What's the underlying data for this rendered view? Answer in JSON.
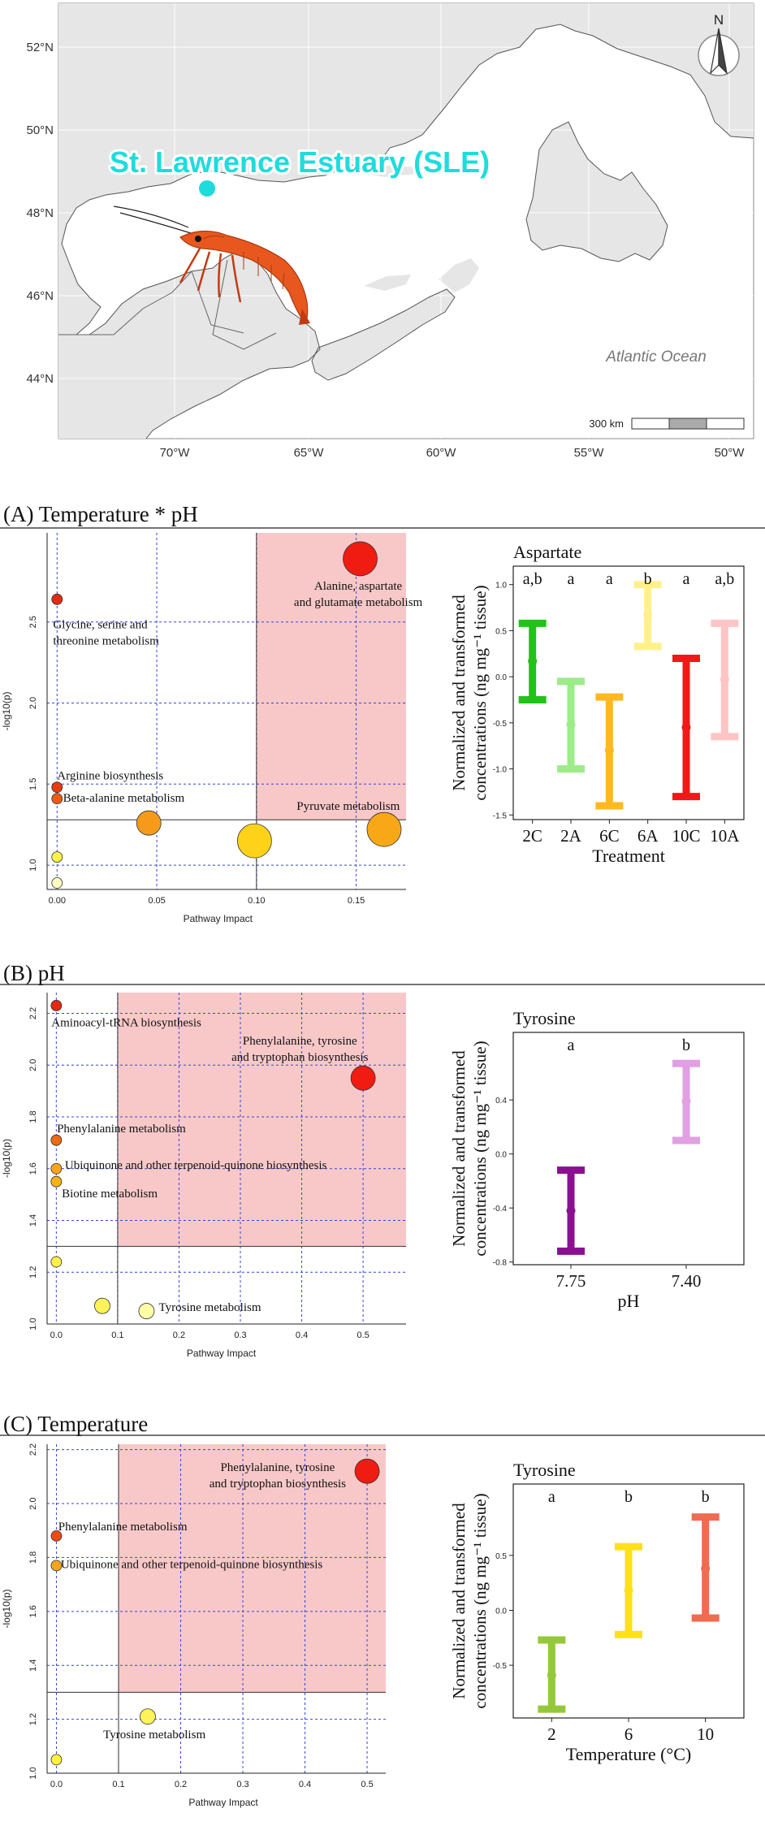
{
  "colors": {
    "sig_region": "#f8c8c8",
    "grid_line": "#3344dd",
    "site_marker": "#1fdcdc",
    "map_land": "#e6e6e6",
    "map_water": "#ffffff"
  },
  "map": {
    "site_label": "St. Lawrence Estuary (SLE)",
    "ocean_label": "Atlantic Ocean",
    "north_label": "N",
    "scale_label": "300 km",
    "lat_labels": [
      "52°N",
      "50°N",
      "48°N",
      "46°N",
      "44°N"
    ],
    "lon_labels": [
      "70°W",
      "65°W",
      "60°W",
      "55°W",
      "50°W"
    ],
    "shrimp_icon": "shrimp-icon"
  },
  "panels": [
    {
      "title": "(A) Temperature * pH",
      "pathway_chart": {
        "type": "scatter",
        "xlabel": "Pathway Impact",
        "ylabel": "-log10(p)",
        "xlim": [
          -0.005,
          0.175
        ],
        "ylim": [
          0.85,
          3.05
        ],
        "xticks": [
          0.0,
          0.05,
          0.1,
          0.15
        ],
        "xtick_labels": [
          "0.00",
          "0.05",
          "0.10",
          "0.15"
        ],
        "yticks": [
          1.0,
          1.5,
          2.0,
          2.5
        ],
        "ytick_labels": [
          "1.0",
          "1.5",
          "2.0",
          "2.5"
        ],
        "impact_threshold": 0.1,
        "p_threshold": 1.28,
        "points": [
          {
            "x": 0.0,
            "y": 2.64,
            "size": 1,
            "color": "#e62a12",
            "label": [
              "Glycine, serine and",
              "threonine metabolism"
            ],
            "label_x": -0.002,
            "label_y": 2.46,
            "anchor": "start"
          },
          {
            "x": 0.0,
            "y": 1.48,
            "size": 1,
            "color": "#e83b10",
            "label": [
              "Arginine biosynthesis"
            ],
            "label_x": 0.0,
            "label_y": 1.53,
            "anchor": "start"
          },
          {
            "x": 0.0,
            "y": 1.41,
            "size": 1,
            "color": "#ee5a14",
            "label": [
              "Beta-alanine metabolism"
            ],
            "label_x": 0.003,
            "label_y": 1.39,
            "anchor": "start"
          },
          {
            "x": 0.0,
            "y": 1.05,
            "size": 1,
            "color": "#fff34a",
            "label": [],
            "label_x": 0,
            "label_y": 0,
            "anchor": "start"
          },
          {
            "x": 0.0,
            "y": 0.89,
            "size": 1,
            "color": "#ffffc0",
            "label": [],
            "label_x": 0,
            "label_y": 0,
            "anchor": "start"
          },
          {
            "x": 0.046,
            "y": 1.26,
            "size": 2,
            "color": "#f79a1a",
            "label": [],
            "label_x": 0,
            "label_y": 0,
            "anchor": "start"
          },
          {
            "x": 0.099,
            "y": 1.15,
            "size": 3,
            "color": "#ffd21a",
            "label": [],
            "label_x": 0,
            "label_y": 0,
            "anchor": "start"
          },
          {
            "x": 0.152,
            "y": 2.89,
            "size": 3,
            "color": "#f01c12",
            "label": [
              "Alanine, aspartate",
              "and glutamate metabolism"
            ],
            "label_x": 0.151,
            "label_y": 2.7,
            "anchor": "middle"
          },
          {
            "x": 0.164,
            "y": 1.22,
            "size": 3,
            "color": "#f8a816",
            "label": [
              "Pyruvate metabolism"
            ],
            "label_x": 0.146,
            "label_y": 1.34,
            "anchor": "middle"
          }
        ]
      },
      "error_chart": {
        "type": "errorbar",
        "title": "Aspartate",
        "xlabel": "Treatment",
        "ylabel": [
          "Normalized and transformed",
          "concentrations (ng mg⁻¹ tissue)"
        ],
        "ylim": [
          -1.55,
          1.2
        ],
        "yticks": [
          -1.5,
          -1.0,
          -0.5,
          0.0,
          0.5,
          1.0
        ],
        "ytick_labels": [
          "-1.5",
          "-1.0",
          "-0.5",
          "0.0",
          "0.5",
          "1.0"
        ],
        "categories": [
          "2C",
          "2A",
          "6C",
          "6A",
          "10C",
          "10A"
        ],
        "means": [
          0.17,
          -0.52,
          -0.8,
          0.67,
          -0.55,
          -0.03
        ],
        "lower": [
          -0.25,
          -1.0,
          -1.4,
          0.33,
          -1.3,
          -0.65
        ],
        "upper": [
          0.58,
          -0.05,
          -0.22,
          1.0,
          0.2,
          0.58
        ],
        "letters": [
          "a,b",
          "a",
          "a",
          "b",
          "a",
          "a,b"
        ],
        "colors": [
          "#22c21a",
          "#9cec8a",
          "#ffb820",
          "#fff08a",
          "#f01818",
          "#ffc4c4"
        ]
      }
    },
    {
      "title": "(B) pH",
      "pathway_chart": {
        "type": "scatter",
        "xlabel": "Pathway Impact",
        "ylabel": "-log10(p)",
        "xlim": [
          -0.015,
          0.57
        ],
        "ylim": [
          1.0,
          2.28
        ],
        "xticks": [
          0.0,
          0.1,
          0.2,
          0.3,
          0.4,
          0.5
        ],
        "xtick_labels": [
          "0.0",
          "0.1",
          "0.2",
          "0.3",
          "0.4",
          "0.5"
        ],
        "yticks": [
          1.0,
          1.2,
          1.4,
          1.6,
          1.8,
          2.0,
          2.2
        ],
        "ytick_labels": [
          "1.0",
          "1.2",
          "1.4",
          "1.6",
          "1.8",
          "2.0",
          "2.2"
        ],
        "impact_threshold": 0.1,
        "p_threshold": 1.3,
        "points": [
          {
            "x": 0.0,
            "y": 2.23,
            "size": 1,
            "color": "#e02a12",
            "label": [
              "Aminoacyl-tRNA biosynthesis"
            ],
            "label_x": -0.008,
            "label_y": 2.15,
            "anchor": "start"
          },
          {
            "x": 0.5,
            "y": 1.95,
            "size": 2,
            "color": "#f01c12",
            "label": [
              "Phenylalanine, tyrosine",
              "and tryptophan biosynthesis"
            ],
            "label_x": 0.397,
            "label_y": 2.08,
            "anchor": "middle"
          },
          {
            "x": 0.0,
            "y": 1.71,
            "size": 1,
            "color": "#ee6a14",
            "label": [
              "Phenylalanine metabolism"
            ],
            "label_x": 0.001,
            "label_y": 1.74,
            "anchor": "start"
          },
          {
            "x": 0.0,
            "y": 1.6,
            "size": 1,
            "color": "#f7a51a",
            "label": [
              "Ubiquinone and other terpenoid-quinone biosynthesis"
            ],
            "label_x": 0.014,
            "label_y": 1.6,
            "anchor": "start"
          },
          {
            "x": 0.0,
            "y": 1.55,
            "size": 1,
            "color": "#f7b21a",
            "label": [
              "Biotine metabolism"
            ],
            "label_x": 0.009,
            "label_y": 1.49,
            "anchor": "start"
          },
          {
            "x": 0.0,
            "y": 1.24,
            "size": 1,
            "color": "#fff04a",
            "label": [],
            "label_x": 0,
            "label_y": 0,
            "anchor": "start"
          },
          {
            "x": 0.075,
            "y": 1.07,
            "size": 1.5,
            "color": "#fff25a",
            "label": [],
            "label_x": 0,
            "label_y": 0,
            "anchor": "start"
          },
          {
            "x": 0.147,
            "y": 1.05,
            "size": 1.5,
            "color": "#ffffa8",
            "label": [
              "Tyrosine metabolism"
            ],
            "label_x": 0.167,
            "label_y": 1.05,
            "anchor": "start"
          }
        ]
      },
      "error_chart": {
        "type": "errorbar",
        "title": "Tyrosine",
        "xlabel": "pH",
        "ylabel": [
          "Normalized and transformed",
          "concentrations (ng mg⁻¹ tissue)"
        ],
        "ylim": [
          -0.82,
          0.9
        ],
        "yticks": [
          -0.8,
          -0.4,
          0.0,
          0.4
        ],
        "ytick_labels": [
          "-0.8",
          "-0.4",
          "0.0",
          "0.4"
        ],
        "categories": [
          "7.75",
          "7.40"
        ],
        "means": [
          -0.42,
          0.39
        ],
        "lower": [
          -0.72,
          0.1
        ],
        "upper": [
          -0.12,
          0.67
        ],
        "letters": [
          "a",
          "b"
        ],
        "colors": [
          "#8a1090",
          "#e0a0e2"
        ]
      }
    },
    {
      "title": "(C) Temperature",
      "pathway_chart": {
        "type": "scatter",
        "xlabel": "Pathway Impact",
        "ylabel": "-log10(p)",
        "xlim": [
          -0.015,
          0.53
        ],
        "ylim": [
          1.0,
          2.22
        ],
        "xticks": [
          0.0,
          0.1,
          0.2,
          0.3,
          0.4,
          0.5
        ],
        "xtick_labels": [
          "0.0",
          "0.1",
          "0.2",
          "0.3",
          "0.4",
          "0.5"
        ],
        "yticks": [
          1.0,
          1.2,
          1.4,
          1.6,
          1.8,
          2.0,
          2.2
        ],
        "ytick_labels": [
          "1.0",
          "1.2",
          "1.4",
          "1.6",
          "1.8",
          "2.0",
          "2.2"
        ],
        "impact_threshold": 0.1,
        "p_threshold": 1.3,
        "points": [
          {
            "x": 0.5,
            "y": 2.12,
            "size": 2,
            "color": "#f01c12",
            "label": [
              "Phenylalanine, tyrosine",
              "and tryptophan biosynthesis"
            ],
            "label_x": 0.356,
            "label_y": 2.12,
            "anchor": "middle"
          },
          {
            "x": 0.0,
            "y": 1.88,
            "size": 1,
            "color": "#ee4a14",
            "label": [
              "Phenylalanine metabolism"
            ],
            "label_x": 0.003,
            "label_y": 1.9,
            "anchor": "start"
          },
          {
            "x": 0.0,
            "y": 1.77,
            "size": 1,
            "color": "#f7a51a",
            "label": [
              "Ubiquinone and other terpenoid-quinone biosynthesis"
            ],
            "label_x": 0.007,
            "label_y": 1.76,
            "anchor": "start"
          },
          {
            "x": 0.147,
            "y": 1.21,
            "size": 1.5,
            "color": "#fff25a",
            "label": [
              "Tyrosine metabolism"
            ],
            "label_x": 0.24,
            "label_y": 1.13,
            "anchor": "end"
          },
          {
            "x": 0.0,
            "y": 1.05,
            "size": 1,
            "color": "#fff43a",
            "label": [],
            "label_x": 0,
            "label_y": 0,
            "anchor": "start"
          }
        ]
      },
      "error_chart": {
        "type": "errorbar",
        "title": "Tyrosine",
        "xlabel": "Temperature (°C)",
        "ylabel": [
          "Normalized and transformed",
          "concentrations (ng mg⁻¹ tissue)"
        ],
        "ylim": [
          -0.98,
          1.15
        ],
        "yticks": [
          -0.5,
          0.0,
          0.5
        ],
        "ytick_labels": [
          "-0.5",
          "0.0",
          "0.5"
        ],
        "categories": [
          "2",
          "6",
          "10"
        ],
        "means": [
          -0.59,
          0.18,
          0.38
        ],
        "lower": [
          -0.9,
          -0.22,
          -0.07
        ],
        "upper": [
          -0.27,
          0.58,
          0.85
        ],
        "letters": [
          "a",
          "b",
          "b"
        ],
        "colors": [
          "#94c83a",
          "#ffe01a",
          "#f06c50"
        ]
      }
    }
  ]
}
